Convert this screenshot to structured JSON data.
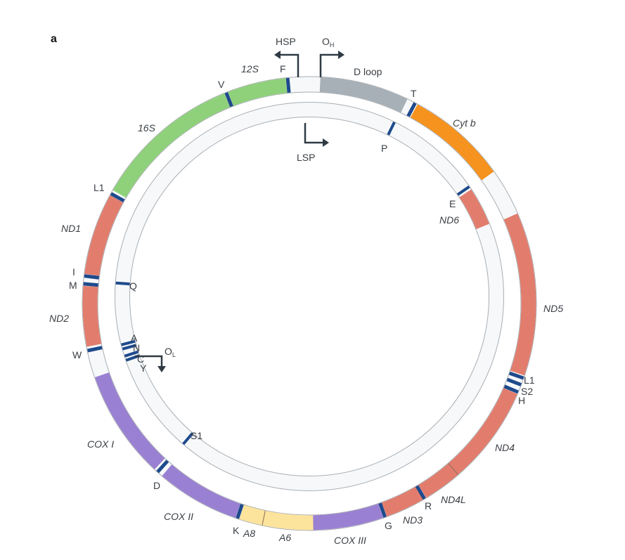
{
  "panel_label": "a",
  "colors": {
    "rrna": "#8fd17a",
    "dloop": "#a7b0b6",
    "cytb": "#f6921e",
    "nd": "#e27d6d",
    "cox": "#9a80d2",
    "atp": "#fde49c",
    "trna": "#1e4a8c",
    "noncoding": "#f6f8fa",
    "edge": "#a9aeb3",
    "arrow": "#2f3a44"
  },
  "outer_strand": [
    {
      "name": "12S",
      "type": "rrna"
    },
    {
      "name": "16S",
      "type": "rrna"
    },
    {
      "name": "ND1",
      "type": "nd"
    },
    {
      "name": "ND2",
      "type": "nd"
    },
    {
      "name": "COX I",
      "type": "cox"
    },
    {
      "name": "COX II",
      "type": "cox"
    },
    {
      "name": "A8",
      "type": "atp"
    },
    {
      "name": "A6",
      "type": "atp"
    },
    {
      "name": "COX III",
      "type": "cox"
    },
    {
      "name": "ND3",
      "type": "nd"
    },
    {
      "name": "ND4L",
      "type": "nd"
    },
    {
      "name": "ND4",
      "type": "nd"
    },
    {
      "name": "ND5",
      "type": "nd"
    },
    {
      "name": "Cyt b",
      "type": "cytb"
    },
    {
      "name": "D loop",
      "type": "dloop"
    }
  ],
  "inner_strand": [
    {
      "name": "ND6",
      "type": "nd"
    }
  ],
  "trna_outer": [
    "F",
    "V",
    "L1",
    "I",
    "M",
    "W",
    "D",
    "K",
    "G",
    "R",
    "H",
    "S2",
    "L1",
    "T"
  ],
  "trna_inner": [
    "P",
    "E",
    "Q",
    "A",
    "N",
    "C",
    "Y",
    "S1"
  ],
  "promoters": {
    "hsp": "HSP",
    "lsp": "LSP"
  },
  "origins": {
    "oh": "O",
    "oh_sub": "H",
    "ol": "O",
    "ol_sub": "L"
  }
}
